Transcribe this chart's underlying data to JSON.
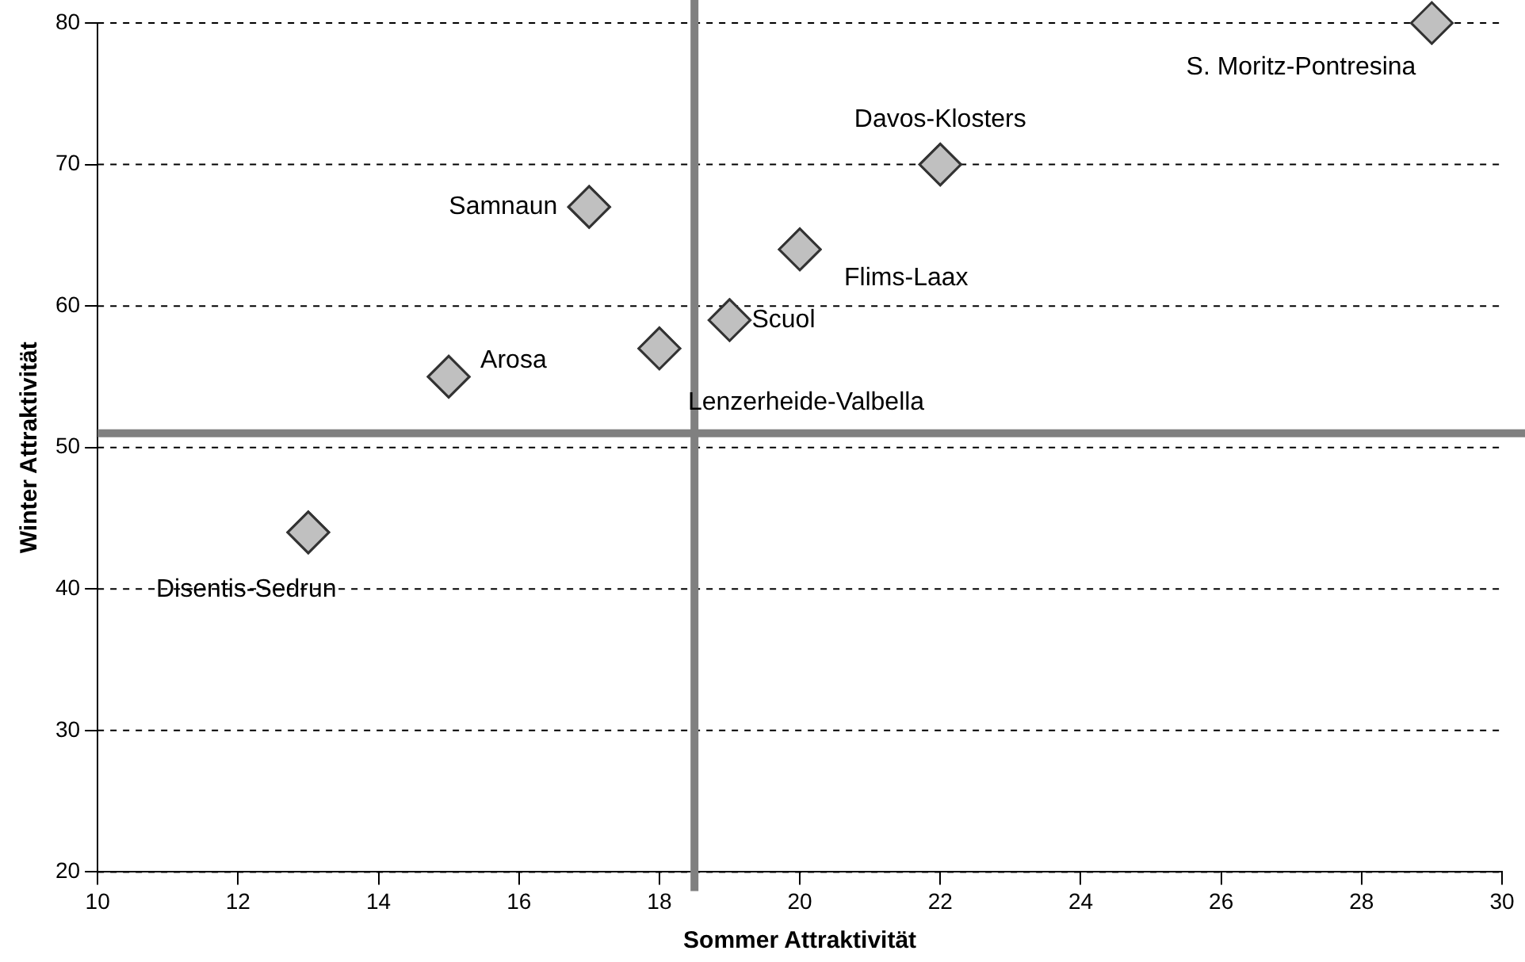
{
  "chart_data": {
    "type": "scatter",
    "xlabel": "Sommer Attraktivität",
    "ylabel": "Winter Attraktivität",
    "x": [
      13,
      15,
      17,
      18,
      19,
      20,
      22,
      29
    ],
    "values": [
      44,
      55,
      67,
      57,
      59,
      64,
      70,
      80
    ],
    "color": "#c0c0c0",
    "marker": "diamond",
    "xlim": [
      10,
      30
    ],
    "xticks": [
      10,
      12,
      14,
      16,
      18,
      20,
      22,
      24,
      26,
      28,
      30
    ],
    "ylim": [
      20,
      80
    ],
    "yticks": [
      20,
      30,
      40,
      50,
      60,
      70,
      80
    ],
    "grid": "y",
    "ref_lines": [
      {
        "axis": "x",
        "value": 18.5,
        "color": "#808080"
      },
      {
        "axis": "y",
        "value": 51,
        "color": "#808080"
      }
    ],
    "annotations": [
      {
        "text": "Disentis-Sedrun",
        "x": 13,
        "y": 44
      },
      {
        "text": "Arosa",
        "x": 15,
        "y": 55
      },
      {
        "text": "Samnaun",
        "x": 17,
        "y": 67
      },
      {
        "text": "Lenzerheide-Valbella",
        "x": 18,
        "y": 57
      },
      {
        "text": "Scuol",
        "x": 19,
        "y": 59
      },
      {
        "text": "Flims-Laax",
        "x": 20,
        "y": 64
      },
      {
        "text": "Davos-Klosters",
        "x": 22,
        "y": 70
      },
      {
        "text": "S. Moritz-Pontresina",
        "x": 29,
        "y": 80
      }
    ]
  }
}
